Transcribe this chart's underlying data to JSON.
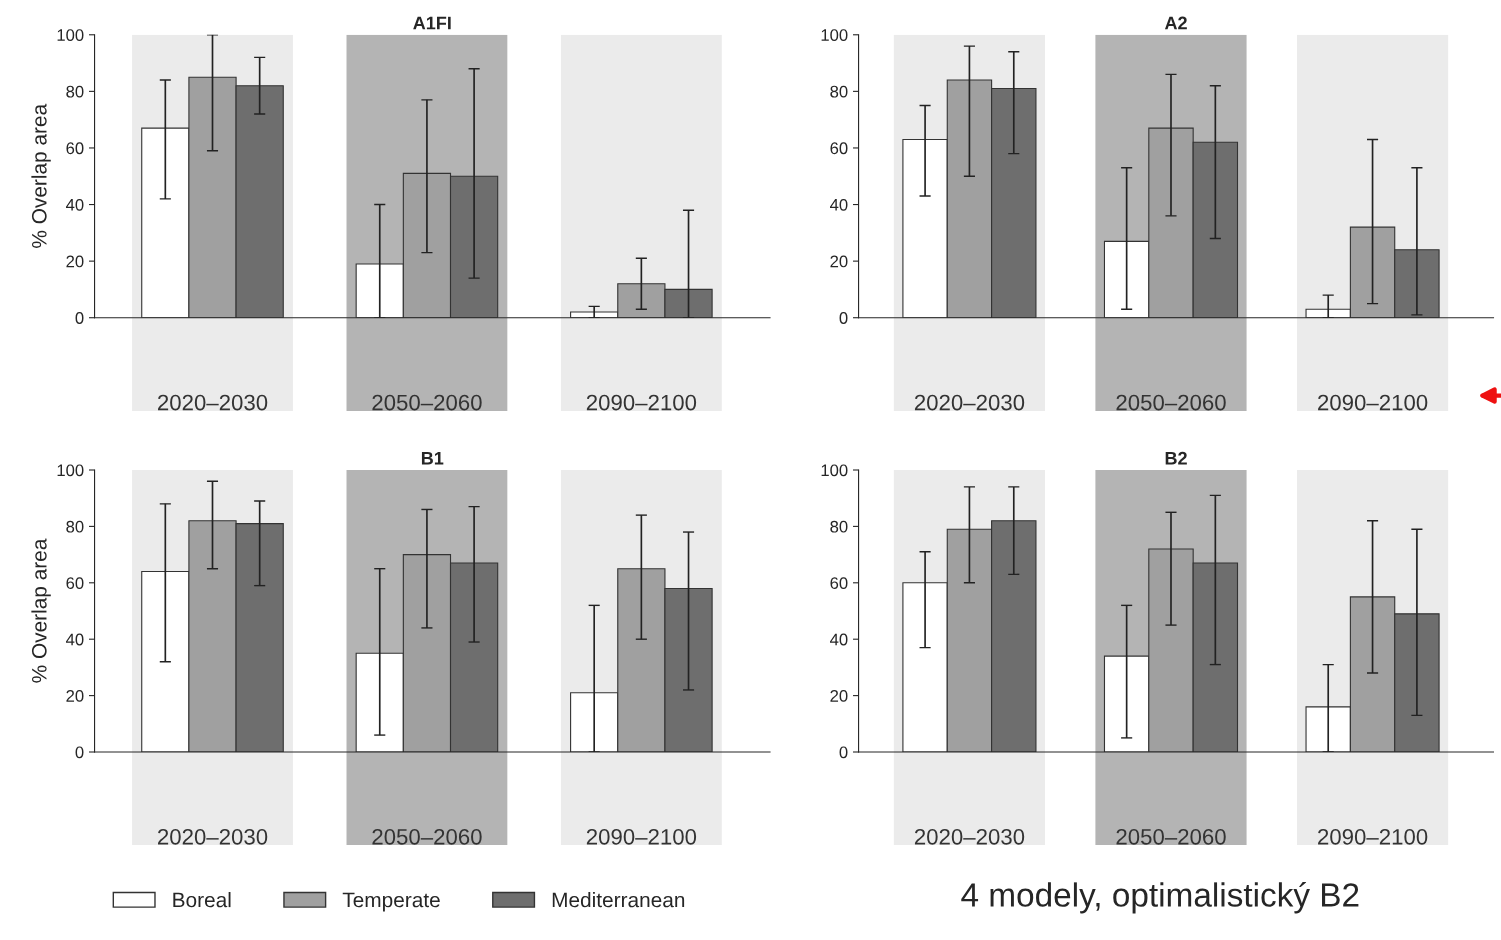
{
  "chart_data": [
    {
      "type": "bar",
      "title": "A1FI",
      "ylabel": "% Overlap area",
      "categories": [
        "2020–2030",
        "2050–2060",
        "2090–2100"
      ],
      "ylim": [
        0,
        100
      ],
      "yticks": [
        0,
        20,
        40,
        60,
        80,
        100
      ],
      "grid": false,
      "bands": [
        {
          "axis": "x",
          "from": "2020–2030",
          "to": "2020–2030",
          "color": "#ebebeb"
        },
        {
          "axis": "x",
          "from": "2050–2060",
          "to": "2050–2060",
          "color": "#b4b4b4"
        },
        {
          "axis": "x",
          "from": "2090–2100",
          "to": "2090–2100",
          "color": "#ebebeb"
        }
      ],
      "series": [
        {
          "color": "#ffffff",
          "values": [
            67,
            19,
            2
          ],
          "errors": [
            [
              42,
              84
            ],
            [
              0,
              40
            ],
            [
              0,
              4
            ]
          ]
        },
        {
          "color": "#a0a0a0",
          "values": [
            85,
            51,
            12
          ],
          "errors": [
            [
              59,
              100
            ],
            [
              23,
              77
            ],
            [
              3,
              21
            ]
          ]
        },
        {
          "color": "#6e6e6e",
          "values": [
            82,
            50,
            10
          ],
          "errors": [
            [
              72,
              92
            ],
            [
              14,
              88
            ],
            [
              0,
              38
            ]
          ]
        }
      ]
    },
    {
      "type": "bar",
      "title": "A2",
      "categories": [
        "2020–2030",
        "2050–2060",
        "2090–2100"
      ],
      "ylim": [
        0,
        100
      ],
      "yticks": [
        0,
        20,
        40,
        60,
        80,
        100
      ],
      "grid": false,
      "bands": [
        {
          "axis": "x",
          "from": "2020–2030",
          "to": "2020–2030",
          "color": "#ebebeb"
        },
        {
          "axis": "x",
          "from": "2050–2060",
          "to": "2050–2060",
          "color": "#b4b4b4"
        },
        {
          "axis": "x",
          "from": "2090–2100",
          "to": "2090–2100",
          "color": "#ebebeb"
        }
      ],
      "series": [
        {
          "color": "#ffffff",
          "values": [
            63,
            27,
            3
          ],
          "errors": [
            [
              43,
              75
            ],
            [
              3,
              53
            ],
            [
              0,
              8
            ]
          ]
        },
        {
          "color": "#a0a0a0",
          "values": [
            84,
            67,
            32
          ],
          "errors": [
            [
              50,
              96
            ],
            [
              36,
              86
            ],
            [
              5,
              63
            ]
          ]
        },
        {
          "color": "#6e6e6e",
          "values": [
            81,
            62,
            24
          ],
          "errors": [
            [
              58,
              94
            ],
            [
              28,
              82
            ],
            [
              1,
              53
            ]
          ]
        }
      ]
    },
    {
      "type": "bar",
      "title": "B1",
      "ylabel": "% Overlap area",
      "categories": [
        "2020–2030",
        "2050–2060",
        "2090–2100"
      ],
      "ylim": [
        0,
        100
      ],
      "yticks": [
        0,
        20,
        40,
        60,
        80,
        100
      ],
      "grid": false,
      "legend": "bottom",
      "bands": [
        {
          "axis": "x",
          "from": "2020–2030",
          "to": "2020–2030",
          "color": "#ebebeb"
        },
        {
          "axis": "x",
          "from": "2050–2060",
          "to": "2050–2060",
          "color": "#b4b4b4"
        },
        {
          "axis": "x",
          "from": "2090–2100",
          "to": "2090–2100",
          "color": "#ebebeb"
        }
      ],
      "series": [
        {
          "name": "Boreal",
          "color": "#ffffff",
          "values": [
            64,
            35,
            21
          ],
          "errors": [
            [
              32,
              88
            ],
            [
              6,
              65
            ],
            [
              0,
              52
            ]
          ]
        },
        {
          "name": "Temperate",
          "color": "#a0a0a0",
          "values": [
            82,
            70,
            65
          ],
          "errors": [
            [
              65,
              96
            ],
            [
              44,
              86
            ],
            [
              40,
              84
            ]
          ]
        },
        {
          "name": "Mediterranean",
          "color": "#6e6e6e",
          "values": [
            81,
            67,
            58
          ],
          "errors": [
            [
              59,
              89
            ],
            [
              39,
              87
            ],
            [
              22,
              78
            ]
          ]
        }
      ]
    },
    {
      "type": "bar",
      "title": "B2",
      "categories": [
        "2020–2030",
        "2050–2060",
        "2090–2100"
      ],
      "ylim": [
        0,
        100
      ],
      "yticks": [
        0,
        20,
        40,
        60,
        80,
        100
      ],
      "grid": false,
      "annotations": [
        "4 modely, optimalistický B2"
      ],
      "bands": [
        {
          "axis": "x",
          "from": "2020–2030",
          "to": "2020–2030",
          "color": "#ebebeb"
        },
        {
          "axis": "x",
          "from": "2050–2060",
          "to": "2050–2060",
          "color": "#b4b4b4"
        },
        {
          "axis": "x",
          "from": "2090–2100",
          "to": "2090–2100",
          "color": "#ebebeb"
        }
      ],
      "series": [
        {
          "color": "#ffffff",
          "values": [
            60,
            34,
            16
          ],
          "errors": [
            [
              37,
              71
            ],
            [
              5,
              52
            ],
            [
              0,
              31
            ]
          ]
        },
        {
          "color": "#a0a0a0",
          "values": [
            79,
            72,
            55
          ],
          "errors": [
            [
              60,
              94
            ],
            [
              45,
              85
            ],
            [
              28,
              82
            ]
          ]
        },
        {
          "color": "#6e6e6e",
          "values": [
            82,
            67,
            49
          ],
          "errors": [
            [
              63,
              94
            ],
            [
              31,
              91
            ],
            [
              13,
              79
            ]
          ]
        }
      ]
    }
  ]
}
